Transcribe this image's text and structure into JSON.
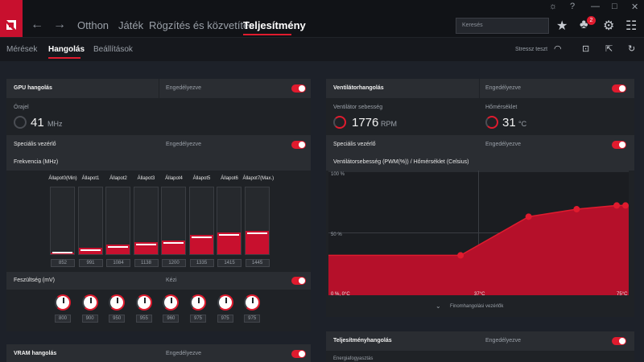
{
  "app": {
    "nav_tabs": [
      "Otthon",
      "Játék",
      "Rögzítés és közvetítés",
      "Teljesítmény"
    ],
    "active_tab": "Teljesítmény",
    "search_placeholder": "Keresés",
    "notification_count": "2",
    "sub_tabs": [
      "Mérések",
      "Hangolás",
      "Beállítások"
    ],
    "active_sub_tab": "Hangolás",
    "stress_test_label": "Stressz teszt"
  },
  "gpu_tuning": {
    "title": "GPU hangolás",
    "status": "Engedélyezve",
    "clock_label": "Órajel",
    "clock_value": "41",
    "clock_unit": "MHz",
    "adv_control_label": "Speciális vezérlő",
    "adv_control_status": "Engedélyezve",
    "frequency_label": "Frekvencia (MHz)",
    "states": [
      {
        "label": "Állapot0(Min)",
        "value": "852",
        "level": 0.03
      },
      {
        "label": "Állapot1",
        "value": "991",
        "level": 0.1
      },
      {
        "label": "Állapot2",
        "value": "1084",
        "level": 0.15
      },
      {
        "label": "Állapot3",
        "value": "1138",
        "level": 0.18
      },
      {
        "label": "Állapot4",
        "value": "1200",
        "level": 0.21
      },
      {
        "label": "Állapot5",
        "value": "1335",
        "level": 0.29
      },
      {
        "label": "Állapot6",
        "value": "1415",
        "level": 0.33
      },
      {
        "label": "Állapot7(Max.)",
        "value": "1445",
        "level": 0.35
      }
    ],
    "voltage_label": "Feszültség (mV)",
    "voltage_mode": "Kézi",
    "voltages": [
      "800",
      "900",
      "950",
      "955",
      "960",
      "975",
      "975",
      "975"
    ]
  },
  "vram_tuning": {
    "title": "VRAM hangolás",
    "status": "Engedélyezve"
  },
  "fan_tuning": {
    "title": "Ventilátorhangolás",
    "status": "Engedélyezve",
    "fan_speed_label": "Ventilátor sebesség",
    "fan_speed_value": "1776",
    "fan_speed_unit": "RPM",
    "temp_label": "Hőmérséklet",
    "temp_value": "31",
    "temp_unit": "°C",
    "adv_control_label": "Speciális vezérlő",
    "adv_control_status": "Engedélyezve",
    "chart_title": "Ventilátorsebesség (PWM(%)) / Hőmérséklet (Celsius)",
    "y_top": "100 %",
    "y_mid": "50 %",
    "x_start": "0 %, 0°C",
    "x_mid": "37°C",
    "x_end": "75°C",
    "fine_tuning_label": "Finomhangolási vezérlők",
    "colors": {
      "accent": "#e01b2e",
      "fill": "#b5102a"
    }
  },
  "perf_tuning": {
    "title": "Teljesítményhangolás",
    "status": "Engedélyezve",
    "power_label": "Energiafogyasztás"
  },
  "chart_data": {
    "type": "area",
    "xlabel": "Hőmérséklet (Celsius)",
    "ylabel": "Ventilátorsebesség (PWM(%))",
    "xlim": [
      0,
      75
    ],
    "ylim": [
      0,
      100
    ],
    "points": [
      {
        "x": 0,
        "y": 32
      },
      {
        "x": 33,
        "y": 32
      },
      {
        "x": 50,
        "y": 63
      },
      {
        "x": 62,
        "y": 69
      },
      {
        "x": 72,
        "y": 72
      },
      {
        "x": 75,
        "y": 72
      }
    ],
    "grid": true
  }
}
